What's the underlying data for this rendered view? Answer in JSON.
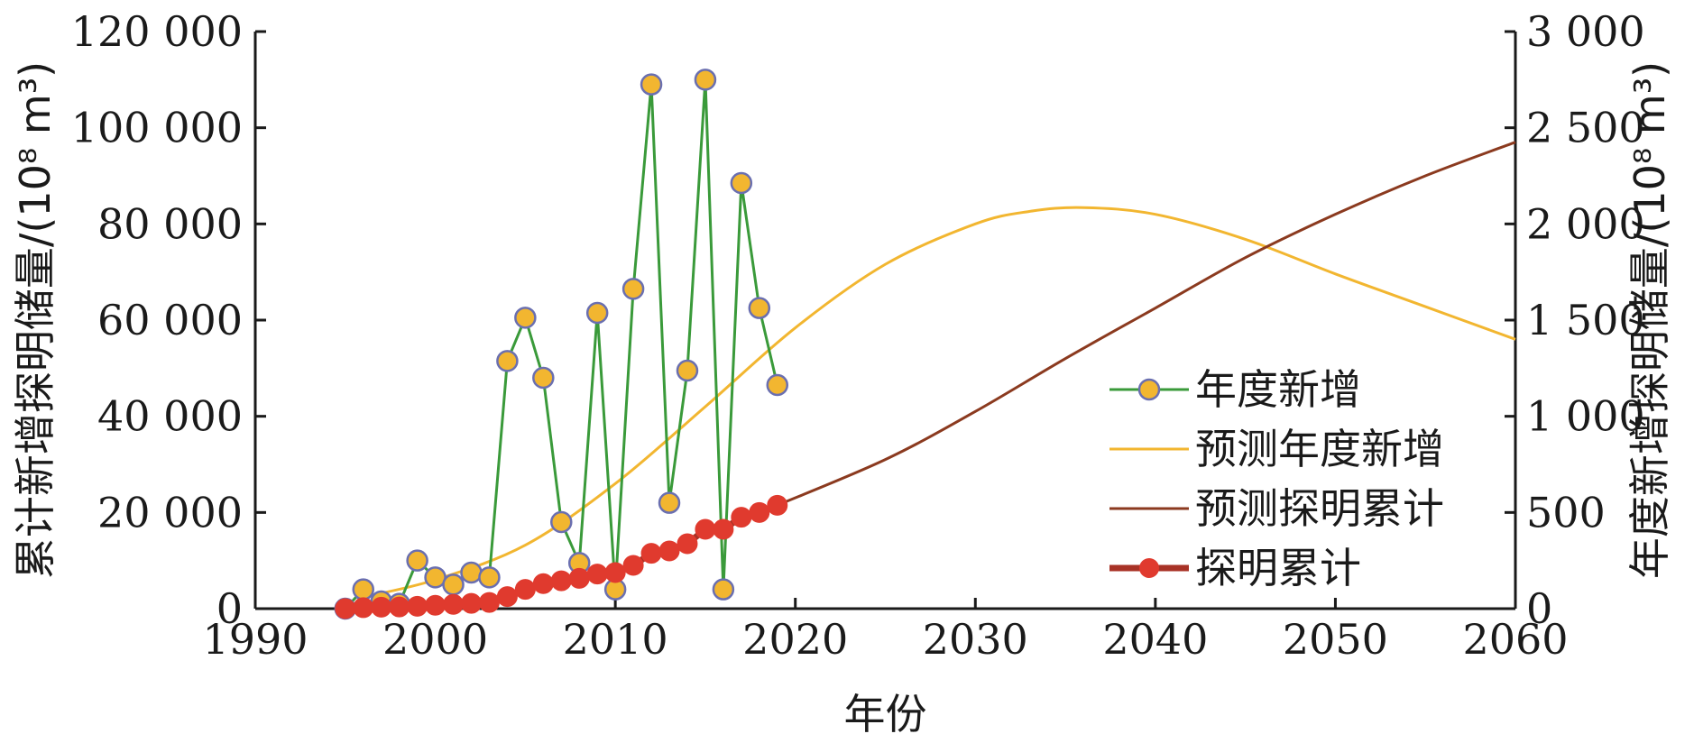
{
  "chart_data": {
    "type": "line",
    "xlabel": "年份",
    "ylabel_left": "累计新增探明储量/(10⁸ m³)",
    "ylabel_right": "年度新增探明储量/(10⁸ m³)",
    "xlim": [
      1990,
      2060
    ],
    "ylim_left": [
      0,
      120000
    ],
    "ylim_right": [
      0,
      3000
    ],
    "x_ticks": [
      1990,
      2000,
      2010,
      2020,
      2030,
      2040,
      2050,
      2060
    ],
    "x_tick_labels": [
      "1990",
      "2000",
      "2010",
      "2020",
      "2030",
      "2040",
      "2050",
      "2060"
    ],
    "y_left_ticks": [
      0,
      20000,
      40000,
      60000,
      80000,
      100000,
      120000
    ],
    "y_left_tick_labels": [
      "0",
      "20 000",
      "40 000",
      "60 000",
      "80 000",
      "100 000",
      "120 000"
    ],
    "y_right_ticks": [
      0,
      500,
      1000,
      1500,
      2000,
      2500,
      3000
    ],
    "y_right_tick_labels": [
      "0",
      "500",
      "1 000",
      "1 500",
      "2 000",
      "2 500",
      "3 000"
    ],
    "legend_position": "bottom-right",
    "grid": false,
    "series": [
      {
        "name": "年度新增",
        "axis": "left",
        "style": "line-marker",
        "color": "#3a9a3a",
        "marker_color": "#f2b630",
        "marker_edge": "#6a6fb0",
        "x": [
          1995,
          1996,
          1997,
          1998,
          1999,
          2000,
          2001,
          2002,
          2003,
          2004,
          2005,
          2006,
          2007,
          2008,
          2009,
          2010,
          2011,
          2012,
          2013,
          2014,
          2015,
          2016,
          2017,
          2018,
          2019
        ],
        "y": [
          0,
          4000,
          1500,
          1000,
          10000,
          6500,
          5000,
          7500,
          6500,
          51500,
          60500,
          48000,
          18000,
          9500,
          61500,
          4000,
          66500,
          109000,
          22000,
          49500,
          110000,
          4000,
          88500,
          62500,
          46500
        ]
      },
      {
        "name": "预测年度新增",
        "axis": "right",
        "style": "line",
        "color": "#f2b630",
        "x": [
          1996,
          2000,
          2005,
          2010,
          2015,
          2020,
          2025,
          2030,
          2033,
          2036,
          2040,
          2045,
          2050,
          2055,
          2060
        ],
        "y": [
          60,
          150,
          330,
          650,
          1050,
          1460,
          1790,
          2000,
          2065,
          2085,
          2050,
          1920,
          1740,
          1570,
          1400
        ]
      },
      {
        "name": "预测探明累计",
        "axis": "left",
        "style": "line",
        "color": "#8b3a1f",
        "x": [
          2019,
          2025,
          2030,
          2035,
          2040,
          2045,
          2050,
          2055,
          2060
        ],
        "y": [
          21500,
          31000,
          41000,
          52000,
          62500,
          73000,
          82000,
          90000,
          97000
        ]
      },
      {
        "name": "探明累计",
        "axis": "left",
        "style": "thick-line-marker",
        "color": "#a83226",
        "marker_color": "#e03a2e",
        "x": [
          1995,
          1996,
          1997,
          1998,
          1999,
          2000,
          2001,
          2002,
          2003,
          2004,
          2005,
          2006,
          2007,
          2008,
          2009,
          2010,
          2011,
          2012,
          2013,
          2014,
          2015,
          2016,
          2017,
          2018,
          2019
        ],
        "y": [
          0,
          200,
          300,
          350,
          500,
          700,
          900,
          1100,
          1300,
          2500,
          4000,
          5200,
          5800,
          6300,
          7200,
          7500,
          9000,
          11500,
          12000,
          13500,
          16500,
          16500,
          19000,
          20000,
          21500
        ]
      }
    ]
  }
}
